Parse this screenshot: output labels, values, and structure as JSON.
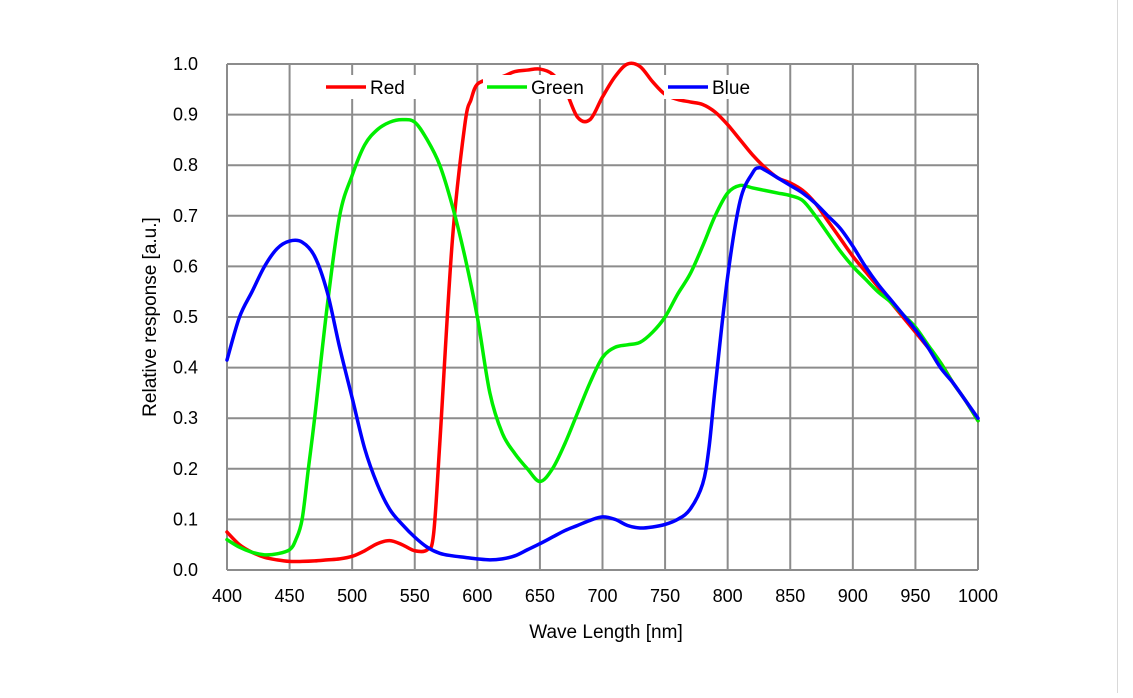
{
  "chart_data": {
    "type": "line",
    "title": "",
    "xlabel": "Wave Length [nm]",
    "ylabel": "Relative response [a.u.]",
    "xlim": [
      400,
      1000
    ],
    "ylim": [
      0.0,
      1.0
    ],
    "grid": true,
    "legend_position": "top-center",
    "x_ticks": [
      400,
      450,
      500,
      550,
      600,
      650,
      700,
      750,
      800,
      850,
      900,
      950,
      1000
    ],
    "x_tick_labels": [
      "400",
      "450",
      "500",
      "550",
      "600",
      "650",
      "700",
      "750",
      "800",
      "850",
      "900",
      "950",
      "1000"
    ],
    "y_ticks": [
      0.0,
      0.1,
      0.2,
      0.3,
      0.4,
      0.5,
      0.6,
      0.7,
      0.8,
      0.9,
      1.0
    ],
    "y_tick_labels": [
      "0.0",
      "0.1",
      "0.2",
      "0.3",
      "0.4",
      "0.5",
      "0.6",
      "0.7",
      "0.8",
      "0.9",
      "1.0"
    ],
    "series": [
      {
        "name": "Red",
        "color": "#ff0000",
        "x": [
          400,
          410,
          420,
          430,
          440,
          450,
          460,
          470,
          480,
          490,
          500,
          510,
          520,
          530,
          540,
          550,
          560,
          565,
          570,
          580,
          590,
          595,
          600,
          610,
          620,
          630,
          640,
          650,
          660,
          670,
          680,
          690,
          700,
          710,
          720,
          730,
          740,
          750,
          760,
          770,
          780,
          790,
          800,
          810,
          820,
          830,
          840,
          850,
          860,
          870,
          880,
          890,
          900,
          910,
          920,
          930,
          940,
          950,
          960,
          970,
          980,
          990,
          1000
        ],
        "y": [
          0.075,
          0.05,
          0.035,
          0.025,
          0.02,
          0.017,
          0.017,
          0.018,
          0.02,
          0.022,
          0.027,
          0.038,
          0.052,
          0.058,
          0.05,
          0.038,
          0.04,
          0.07,
          0.25,
          0.65,
          0.88,
          0.93,
          0.96,
          0.97,
          0.975,
          0.985,
          0.988,
          0.99,
          0.98,
          0.95,
          0.895,
          0.89,
          0.935,
          0.975,
          1.0,
          0.995,
          0.965,
          0.94,
          0.93,
          0.925,
          0.92,
          0.905,
          0.88,
          0.85,
          0.82,
          0.795,
          0.775,
          0.765,
          0.75,
          0.725,
          0.69,
          0.655,
          0.62,
          0.59,
          0.56,
          0.53,
          0.5,
          0.47,
          0.44,
          0.41,
          0.37,
          0.335,
          0.295
        ]
      },
      {
        "name": "Green",
        "color": "#00ee00",
        "x": [
          400,
          410,
          420,
          430,
          440,
          450,
          455,
          460,
          465,
          470,
          480,
          490,
          500,
          510,
          520,
          530,
          540,
          550,
          560,
          570,
          580,
          590,
          600,
          610,
          620,
          630,
          640,
          650,
          660,
          670,
          680,
          690,
          700,
          710,
          720,
          730,
          740,
          750,
          760,
          770,
          780,
          790,
          800,
          810,
          820,
          830,
          840,
          850,
          860,
          870,
          880,
          890,
          900,
          910,
          920,
          930,
          940,
          950,
          960,
          970,
          980,
          990,
          1000
        ],
        "y": [
          0.06,
          0.045,
          0.035,
          0.03,
          0.032,
          0.04,
          0.06,
          0.1,
          0.2,
          0.3,
          0.52,
          0.7,
          0.78,
          0.84,
          0.87,
          0.885,
          0.89,
          0.885,
          0.85,
          0.8,
          0.72,
          0.62,
          0.5,
          0.35,
          0.27,
          0.23,
          0.2,
          0.175,
          0.2,
          0.25,
          0.31,
          0.37,
          0.42,
          0.44,
          0.445,
          0.45,
          0.47,
          0.5,
          0.545,
          0.585,
          0.64,
          0.7,
          0.745,
          0.76,
          0.755,
          0.75,
          0.745,
          0.74,
          0.73,
          0.7,
          0.665,
          0.63,
          0.6,
          0.575,
          0.55,
          0.53,
          0.505,
          0.48,
          0.445,
          0.41,
          0.37,
          0.335,
          0.295
        ]
      },
      {
        "name": "Blue",
        "color": "#0000ff",
        "x": [
          400,
          410,
          420,
          430,
          440,
          450,
          460,
          470,
          480,
          490,
          500,
          510,
          520,
          530,
          540,
          550,
          560,
          570,
          580,
          590,
          600,
          610,
          620,
          630,
          640,
          650,
          660,
          670,
          680,
          690,
          700,
          710,
          720,
          730,
          740,
          750,
          760,
          770,
          780,
          785,
          790,
          800,
          810,
          820,
          825,
          830,
          840,
          850,
          860,
          870,
          880,
          890,
          900,
          910,
          920,
          930,
          940,
          950,
          960,
          970,
          980,
          990,
          1000
        ],
        "y": [
          0.415,
          0.5,
          0.55,
          0.6,
          0.635,
          0.65,
          0.648,
          0.62,
          0.55,
          0.44,
          0.34,
          0.24,
          0.17,
          0.12,
          0.09,
          0.065,
          0.045,
          0.033,
          0.028,
          0.025,
          0.022,
          0.02,
          0.022,
          0.028,
          0.04,
          0.052,
          0.065,
          0.078,
          0.088,
          0.098,
          0.105,
          0.1,
          0.088,
          0.083,
          0.085,
          0.09,
          0.1,
          0.12,
          0.17,
          0.24,
          0.36,
          0.58,
          0.73,
          0.785,
          0.795,
          0.79,
          0.775,
          0.76,
          0.745,
          0.725,
          0.7,
          0.675,
          0.64,
          0.6,
          0.565,
          0.535,
          0.505,
          0.475,
          0.44,
          0.4,
          0.37,
          0.335,
          0.3
        ]
      }
    ]
  }
}
